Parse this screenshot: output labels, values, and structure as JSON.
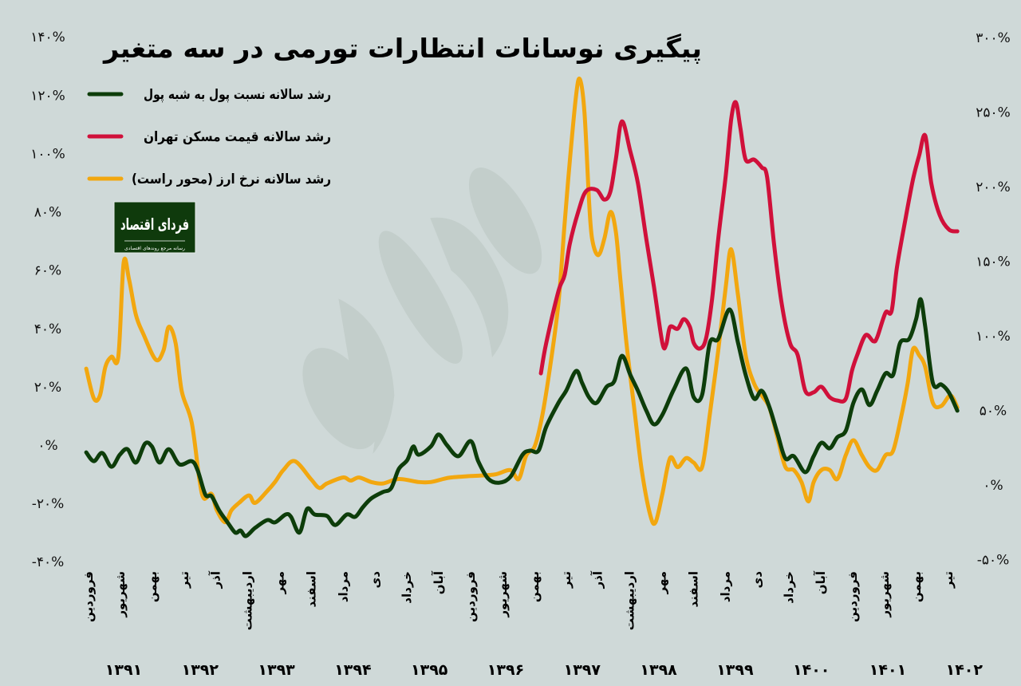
{
  "chart_data": {
    "type": "line",
    "title": "پیگیری نوسانات انتظارات تورمی در سه متغیر",
    "x_unit": "Persian (Solar Hijri) year",
    "xlim": [
      1390.98,
      1402.38
    ],
    "left_axis": {
      "ylim": [
        -40,
        140
      ],
      "ticks": [
        "-۴۰%",
        "-۲۰%",
        "۰%",
        "۲۰%",
        "۴۰%",
        "۶۰%",
        "۸۰%",
        "۱۰۰%",
        "۱۲۰%",
        "۱۴۰%"
      ],
      "tick_values": [
        -40,
        -20,
        0,
        20,
        40,
        60,
        80,
        100,
        120,
        140
      ]
    },
    "right_axis": {
      "ylim": [
        -50,
        300
      ],
      "ticks": [
        "-۵۰%",
        "۰%",
        "۵۰%",
        "۱۰۰%",
        "۱۵۰%",
        "۲۰۰%",
        "۲۵۰%",
        "۳۰۰%"
      ],
      "tick_values": [
        -50,
        0,
        50,
        100,
        150,
        200,
        250,
        300
      ]
    },
    "grid": false,
    "legend_placement": "top-left",
    "month_labels": [
      "فروردین",
      "شهریور",
      "بهمن",
      "تیر",
      "آذر",
      "اردیبهشت",
      "مهر",
      "اسفند",
      "مرداد",
      "دی",
      "خرداد",
      "آبان",
      "فروردین",
      "شهریور",
      "بهمن",
      "تیر",
      "آذر",
      "اردیبهشت",
      "مهر",
      "اسفند",
      "مرداد",
      "دی",
      "خرداد",
      "آبان",
      "فروردین",
      "شهریور",
      "بهمن",
      "تیر"
    ],
    "month_label_start": 1391.0,
    "month_label_step_months": 5,
    "year_labels": [
      {
        "label": "۱۳۹۱",
        "year": 1391
      },
      {
        "label": "۱۳۹۲",
        "year": 1392
      },
      {
        "label": "۱۳۹۳",
        "year": 1393
      },
      {
        "label": "۱۳۹۴",
        "year": 1394
      },
      {
        "label": "۱۳۹۵",
        "year": 1395
      },
      {
        "label": "۱۳۹۶",
        "year": 1396
      },
      {
        "label": "۱۳۹۷",
        "year": 1397
      },
      {
        "label": "۱۳۹۸",
        "year": 1398
      },
      {
        "label": "۱۳۹۹",
        "year": 1399
      },
      {
        "label": "۱۴۰۰",
        "year": 1400
      },
      {
        "label": "۱۴۰۱",
        "year": 1401
      },
      {
        "label": "۱۴۰۲",
        "year": 1402
      }
    ],
    "series": [
      {
        "name": "رشد سالانه نسبت پول به شبه پول",
        "color": "#0d3d0a",
        "axis": "left",
        "points": [
          [
            1390.98,
            -2.5
          ],
          [
            1391.08,
            -5.5
          ],
          [
            1391.19,
            -2.7
          ],
          [
            1391.31,
            -7.4
          ],
          [
            1391.42,
            -3.3
          ],
          [
            1391.52,
            -1.4
          ],
          [
            1391.63,
            -6
          ],
          [
            1391.75,
            0.5
          ],
          [
            1391.84,
            -0.5
          ],
          [
            1391.94,
            -6
          ],
          [
            1392.06,
            -1.4
          ],
          [
            1392.2,
            -6.6
          ],
          [
            1392.36,
            -5.5
          ],
          [
            1392.44,
            -8.8
          ],
          [
            1392.54,
            -17
          ],
          [
            1392.62,
            -17.5
          ],
          [
            1392.72,
            -22.4
          ],
          [
            1392.83,
            -26.5
          ],
          [
            1392.93,
            -30
          ],
          [
            1393.0,
            -29.3
          ],
          [
            1393.07,
            -31.2
          ],
          [
            1393.19,
            -28.4
          ],
          [
            1393.35,
            -25.7
          ],
          [
            1393.45,
            -26.5
          ],
          [
            1393.59,
            -23.8
          ],
          [
            1393.66,
            -24.6
          ],
          [
            1393.77,
            -30
          ],
          [
            1393.87,
            -21.9
          ],
          [
            1393.97,
            -23.8
          ],
          [
            1394.13,
            -24.3
          ],
          [
            1394.24,
            -27.4
          ],
          [
            1394.39,
            -23.8
          ],
          [
            1394.5,
            -24.6
          ],
          [
            1394.6,
            -21.3
          ],
          [
            1394.71,
            -18.3
          ],
          [
            1394.86,
            -16.1
          ],
          [
            1394.97,
            -14.8
          ],
          [
            1395.07,
            -8.2
          ],
          [
            1395.18,
            -5.2
          ],
          [
            1395.26,
            -0.5
          ],
          [
            1395.33,
            -3.3
          ],
          [
            1395.49,
            -0.5
          ],
          [
            1395.59,
            3.6
          ],
          [
            1395.7,
            0
          ],
          [
            1395.85,
            -3.8
          ],
          [
            1396.01,
            1.4
          ],
          [
            1396.11,
            -5.5
          ],
          [
            1396.24,
            -11.5
          ],
          [
            1396.38,
            -12.9
          ],
          [
            1396.53,
            -10.9
          ],
          [
            1396.69,
            -3.3
          ],
          [
            1396.79,
            -1.9
          ],
          [
            1396.9,
            -1.9
          ],
          [
            1397.0,
            6.3
          ],
          [
            1397.16,
            14.5
          ],
          [
            1397.26,
            18.6
          ],
          [
            1397.39,
            25.4
          ],
          [
            1397.47,
            21.3
          ],
          [
            1397.56,
            16.4
          ],
          [
            1397.66,
            14.5
          ],
          [
            1397.79,
            20
          ],
          [
            1397.89,
            21.9
          ],
          [
            1397.99,
            30.6
          ],
          [
            1398.1,
            24.1
          ],
          [
            1398.2,
            18.6
          ],
          [
            1398.31,
            11.8
          ],
          [
            1398.41,
            7.1
          ],
          [
            1398.52,
            10.4
          ],
          [
            1398.67,
            19.1
          ],
          [
            1398.83,
            26.3
          ],
          [
            1398.93,
            16.4
          ],
          [
            1399.04,
            17.2
          ],
          [
            1399.14,
            35
          ],
          [
            1399.25,
            36.4
          ],
          [
            1399.4,
            46.5
          ],
          [
            1399.51,
            35
          ],
          [
            1399.61,
            24.1
          ],
          [
            1399.72,
            15.9
          ],
          [
            1399.82,
            18.6
          ],
          [
            1399.92,
            13.1
          ],
          [
            1400.03,
            3.6
          ],
          [
            1400.13,
            -4.6
          ],
          [
            1400.24,
            -3.8
          ],
          [
            1400.39,
            -9.3
          ],
          [
            1400.5,
            -3.8
          ],
          [
            1400.6,
            0.8
          ],
          [
            1400.71,
            -1.1
          ],
          [
            1400.81,
            2.7
          ],
          [
            1400.92,
            4.9
          ],
          [
            1401.02,
            14.5
          ],
          [
            1401.13,
            19.1
          ],
          [
            1401.23,
            13.7
          ],
          [
            1401.33,
            18.6
          ],
          [
            1401.44,
            24.6
          ],
          [
            1401.54,
            24.1
          ],
          [
            1401.63,
            35
          ],
          [
            1401.75,
            36.4
          ],
          [
            1401.84,
            43.2
          ],
          [
            1401.9,
            50
          ],
          [
            1401.96,
            40.5
          ],
          [
            1402.06,
            21.3
          ],
          [
            1402.17,
            20.8
          ],
          [
            1402.27,
            18
          ],
          [
            1402.38,
            11.8
          ]
        ]
      },
      {
        "name": "رشد سالانه قیمت مسکن تهران",
        "color": "#d0103a",
        "axis": "left",
        "points": [
          [
            1396.93,
            24.6
          ],
          [
            1397.0,
            35
          ],
          [
            1397.16,
            52.8
          ],
          [
            1397.24,
            58.3
          ],
          [
            1397.31,
            69.2
          ],
          [
            1397.42,
            80.1
          ],
          [
            1397.52,
            87
          ],
          [
            1397.66,
            87.5
          ],
          [
            1397.76,
            84.2
          ],
          [
            1397.84,
            87
          ],
          [
            1397.91,
            97.9
          ],
          [
            1397.99,
            111
          ],
          [
            1398.1,
            100.7
          ],
          [
            1398.2,
            89.7
          ],
          [
            1398.31,
            70.6
          ],
          [
            1398.41,
            54.2
          ],
          [
            1398.52,
            35
          ],
          [
            1398.57,
            34.5
          ],
          [
            1398.62,
            40.5
          ],
          [
            1398.72,
            39.9
          ],
          [
            1398.8,
            43.2
          ],
          [
            1398.88,
            40.5
          ],
          [
            1398.93,
            35
          ],
          [
            1399.01,
            33.1
          ],
          [
            1399.09,
            36.4
          ],
          [
            1399.17,
            50
          ],
          [
            1399.25,
            70.6
          ],
          [
            1399.35,
            92.5
          ],
          [
            1399.42,
            111.6
          ],
          [
            1399.48,
            117.6
          ],
          [
            1399.54,
            108.9
          ],
          [
            1399.61,
            97.9
          ],
          [
            1399.72,
            97.9
          ],
          [
            1399.82,
            95.2
          ],
          [
            1399.89,
            91.9
          ],
          [
            1399.98,
            69.2
          ],
          [
            1400.08,
            48.7
          ],
          [
            1400.19,
            35
          ],
          [
            1400.29,
            30.9
          ],
          [
            1400.39,
            18.6
          ],
          [
            1400.5,
            18.1
          ],
          [
            1400.6,
            20
          ],
          [
            1400.71,
            16.4
          ],
          [
            1400.81,
            15.3
          ],
          [
            1400.92,
            15.9
          ],
          [
            1401.0,
            25.4
          ],
          [
            1401.07,
            30.9
          ],
          [
            1401.18,
            37.7
          ],
          [
            1401.28,
            35.6
          ],
          [
            1401.33,
            36.9
          ],
          [
            1401.44,
            45.4
          ],
          [
            1401.52,
            46
          ],
          [
            1401.59,
            61
          ],
          [
            1401.7,
            77.4
          ],
          [
            1401.8,
            91.1
          ],
          [
            1401.88,
            99.3
          ],
          [
            1401.96,
            106.1
          ],
          [
            1402.04,
            89.7
          ],
          [
            1402.15,
            78.8
          ],
          [
            1402.27,
            73.9
          ],
          [
            1402.38,
            73.3
          ]
        ]
      },
      {
        "name": "رشد سالانه نرخ ارز (محور راست)",
        "color": "#f2a70f",
        "axis": "right",
        "points": [
          [
            1390.98,
            78
          ],
          [
            1391.08,
            58
          ],
          [
            1391.16,
            60
          ],
          [
            1391.23,
            79
          ],
          [
            1391.31,
            86
          ],
          [
            1391.4,
            86
          ],
          [
            1391.47,
            149
          ],
          [
            1391.54,
            138
          ],
          [
            1391.63,
            114
          ],
          [
            1391.73,
            101
          ],
          [
            1391.89,
            84
          ],
          [
            1391.99,
            90
          ],
          [
            1392.06,
            106
          ],
          [
            1392.15,
            95
          ],
          [
            1392.23,
            63
          ],
          [
            1392.36,
            42
          ],
          [
            1392.46,
            4
          ],
          [
            1392.52,
            -9
          ],
          [
            1392.62,
            -6
          ],
          [
            1392.69,
            -17
          ],
          [
            1392.8,
            -25
          ],
          [
            1392.88,
            -17
          ],
          [
            1392.98,
            -12
          ],
          [
            1393.11,
            -7
          ],
          [
            1393.19,
            -12
          ],
          [
            1393.35,
            -4
          ],
          [
            1393.45,
            2
          ],
          [
            1393.56,
            10
          ],
          [
            1393.71,
            16
          ],
          [
            1393.92,
            4
          ],
          [
            1394.03,
            -2
          ],
          [
            1394.13,
            1
          ],
          [
            1394.34,
            5
          ],
          [
            1394.44,
            3
          ],
          [
            1394.55,
            5
          ],
          [
            1394.71,
            2
          ],
          [
            1394.86,
            1
          ],
          [
            1395.07,
            4
          ],
          [
            1395.33,
            2
          ],
          [
            1395.49,
            2
          ],
          [
            1395.65,
            4
          ],
          [
            1395.75,
            5
          ],
          [
            1396.01,
            6
          ],
          [
            1396.32,
            7
          ],
          [
            1396.53,
            10
          ],
          [
            1396.64,
            4
          ],
          [
            1396.74,
            20
          ],
          [
            1396.85,
            26
          ],
          [
            1396.95,
            47
          ],
          [
            1397.05,
            79
          ],
          [
            1397.16,
            122
          ],
          [
            1397.24,
            175
          ],
          [
            1397.31,
            218
          ],
          [
            1397.39,
            261
          ],
          [
            1397.44,
            272
          ],
          [
            1397.5,
            250
          ],
          [
            1397.56,
            191
          ],
          [
            1397.6,
            165
          ],
          [
            1397.68,
            154
          ],
          [
            1397.76,
            165
          ],
          [
            1397.84,
            183
          ],
          [
            1397.91,
            170
          ],
          [
            1397.97,
            138
          ],
          [
            1398.05,
            95
          ],
          [
            1398.15,
            52
          ],
          [
            1398.25,
            10
          ],
          [
            1398.36,
            -20
          ],
          [
            1398.43,
            -25
          ],
          [
            1398.52,
            -6
          ],
          [
            1398.62,
            18
          ],
          [
            1398.72,
            12
          ],
          [
            1398.83,
            18
          ],
          [
            1398.93,
            15
          ],
          [
            1399.04,
            12
          ],
          [
            1399.14,
            47
          ],
          [
            1399.25,
            90
          ],
          [
            1399.35,
            133
          ],
          [
            1399.42,
            158
          ],
          [
            1399.51,
            127
          ],
          [
            1399.61,
            87
          ],
          [
            1399.72,
            68
          ],
          [
            1399.82,
            60
          ],
          [
            1399.92,
            52
          ],
          [
            1400.03,
            31
          ],
          [
            1400.13,
            12
          ],
          [
            1400.24,
            10
          ],
          [
            1400.34,
            2
          ],
          [
            1400.43,
            -11
          ],
          [
            1400.5,
            2
          ],
          [
            1400.6,
            10
          ],
          [
            1400.71,
            10
          ],
          [
            1400.81,
            4
          ],
          [
            1400.92,
            20
          ],
          [
            1401.02,
            30
          ],
          [
            1401.13,
            20
          ],
          [
            1401.23,
            12
          ],
          [
            1401.33,
            10
          ],
          [
            1401.44,
            20
          ],
          [
            1401.54,
            23
          ],
          [
            1401.65,
            47
          ],
          [
            1401.73,
            68
          ],
          [
            1401.8,
            91
          ],
          [
            1401.88,
            87
          ],
          [
            1401.96,
            79
          ],
          [
            1402.06,
            55
          ],
          [
            1402.17,
            53
          ],
          [
            1402.29,
            60
          ],
          [
            1402.38,
            52
          ]
        ]
      }
    ]
  },
  "logo": {
    "name": "فردای اقتصاد",
    "tagline": "رسانه مرجع روندهای اقتصادی",
    "color": "#0f3a0c"
  },
  "colors": {
    "background": "#cfd9d8",
    "watermark": "#bfcbc8"
  }
}
